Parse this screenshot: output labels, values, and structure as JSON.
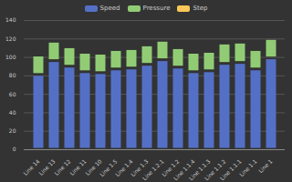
{
  "chart_data": {
    "type": "bar",
    "stacked": true,
    "grid": true,
    "legend": "top",
    "categories": [
      "Line 14",
      "Line 13",
      "Line 12",
      "Line 11",
      "Line 10",
      "Line 1.5",
      "Line 1.4",
      "Line 1.3",
      "Line 1.2.1",
      "Line 1.2",
      "Line 1.1.4",
      "Line 1.1.3",
      "Line 1.1.2",
      "Line 1.1.1",
      "Line 1.1",
      "Line 1"
    ],
    "series": [
      {
        "name": "Speed",
        "color": "#5470c6",
        "values": [
          81,
          96,
          90,
          84,
          83,
          87,
          88,
          92,
          97,
          89,
          84,
          85,
          93,
          94,
          87,
          99
        ]
      },
      {
        "name": "Pressure",
        "color": "#91cc75",
        "values": [
          21,
          21,
          21,
          21,
          21,
          21,
          21,
          21,
          21,
          21,
          21,
          21,
          22,
          22,
          21,
          21
        ]
      },
      {
        "name": "Step",
        "color": "#fac858",
        "values": [
          2,
          2,
          2,
          2,
          2,
          2,
          2,
          2,
          2,
          2,
          2,
          2,
          2,
          2,
          2,
          2
        ]
      }
    ],
    "ylim": [
      0,
      140
    ],
    "yticks": [
      0,
      20,
      40,
      60,
      80,
      100,
      120,
      140
    ]
  }
}
